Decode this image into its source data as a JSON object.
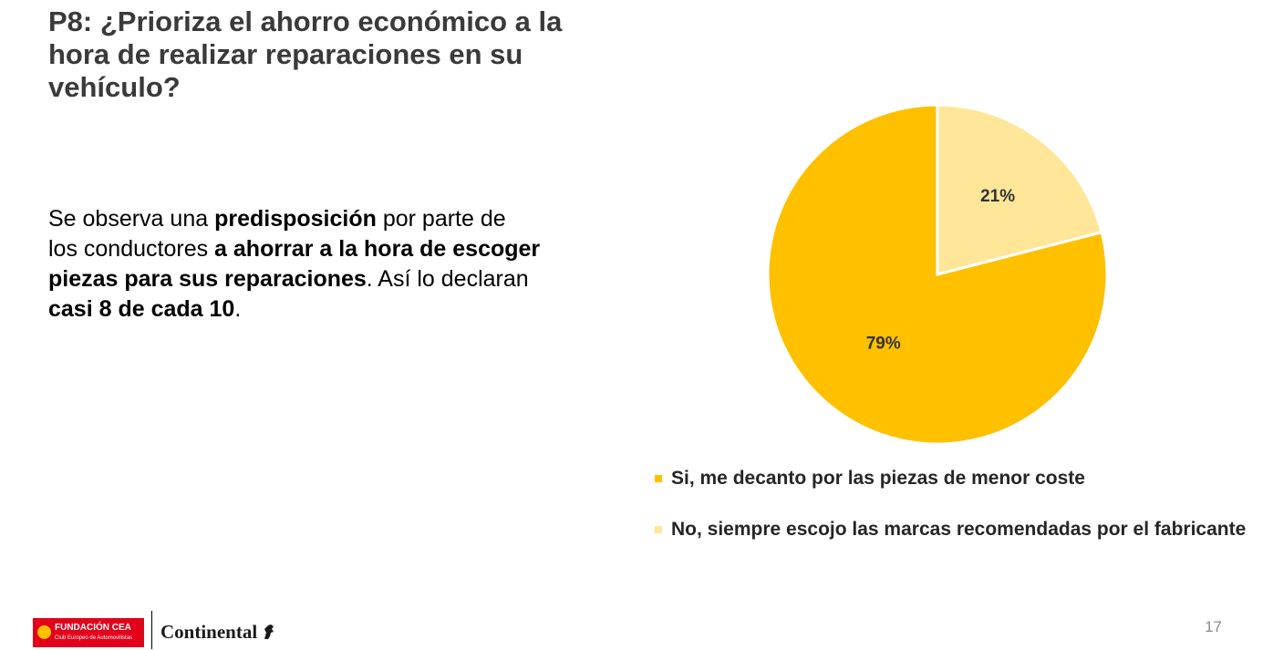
{
  "slide": {
    "title": "P8: ¿Prioriza el ahorro económico a la hora de realizar reparaciones en su vehículo?",
    "body": [
      {
        "text": "Se observa una ",
        "bold": false
      },
      {
        "text": "predisposición",
        "bold": true
      },
      {
        "text": " por parte de los conductores ",
        "bold": false
      },
      {
        "text": "a ahorrar a la hora de escoger piezas para sus reparaciones",
        "bold": true
      },
      {
        "text": ". Así lo declaran ",
        "bold": false
      },
      {
        "text": "casi 8 de cada 10",
        "bold": true
      },
      {
        "text": ".",
        "bold": false
      }
    ],
    "page_number": "17"
  },
  "footer": {
    "cea_name": "FUNDACIÓN CEA",
    "cea_subtitle": "Club Europeo de Automovilistas",
    "continental_name": "Continental"
  },
  "chart_data": {
    "type": "pie",
    "title": "",
    "categories": [
      "No, siempre escojo las marcas recomendadas por el fabricante",
      "Si, me decanto por las piezas de menor coste"
    ],
    "values": [
      21,
      79
    ],
    "data_labels": [
      "21%",
      "79%"
    ],
    "colors": [
      "#ffe699",
      "#ffc000"
    ],
    "start_angle_deg": 0,
    "direction": "clockwise",
    "legend": {
      "position": "bottom",
      "entries": [
        {
          "label": "Si, me decanto por las piezas de menor coste",
          "color": "#ffc000"
        },
        {
          "label": "No, siempre escojo las marcas recomendadas por el fabricante",
          "color": "#ffe699"
        }
      ]
    }
  }
}
